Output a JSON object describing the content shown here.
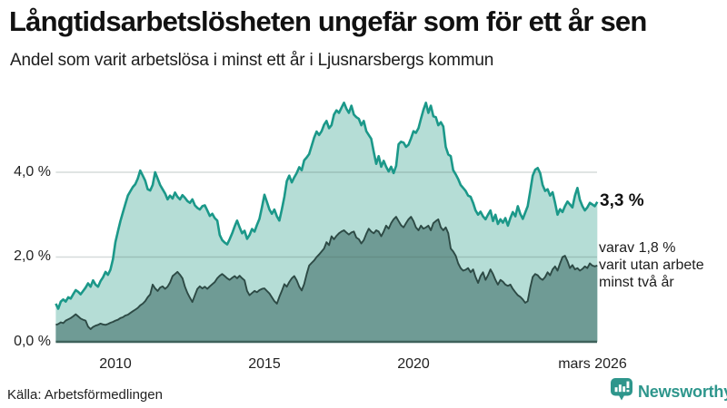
{
  "header": {
    "title": "Långtidsarbetslösheten ungefär som för ett år sen",
    "subtitle": "Andel som varit arbetslösa i minst ett år i Ljusnarsbergs kommun"
  },
  "footer": {
    "source": "Källa: Arbetsförmedlingen",
    "brand": "Newsworthy"
  },
  "colors": {
    "series1_line": "#1b9889",
    "series1_fill": "#b5ddd6",
    "series2_line": "#2d4a45",
    "series2_fill": "#6f9b95",
    "gridline": "rgba(70,90,88,0.22)",
    "baseline": "#3e625b",
    "brand_teal": "#2e968c",
    "text": "#1a1a1a"
  },
  "chart_data": {
    "type": "area",
    "title": "Långtidsarbetslösheten ungefär som för ett år sen",
    "subtitle": "Andel som varit arbetslösa i minst ett år i Ljusnarsbergs kommun",
    "unit": "%",
    "x_start_year": 2008.0,
    "x_step_months": 1,
    "x_end_label_value": 2026.17,
    "ylim": [
      0,
      5.8
    ],
    "grid": "horizontal",
    "y_ticks": [
      {
        "value": 0,
        "label": "0,0 %"
      },
      {
        "value": 2,
        "label": "2,0 %"
      },
      {
        "value": 4,
        "label": "4,0 %"
      }
    ],
    "x_ticks": [
      {
        "value": 2010,
        "label": "2010"
      },
      {
        "value": 2015,
        "label": "2015"
      },
      {
        "value": 2020,
        "label": "2020"
      },
      {
        "value": 2026.17,
        "label": "mars 2026"
      }
    ],
    "end_label": "3,3 %",
    "annotation": {
      "lines": [
        "varav 1,8 %",
        "varit utan arbete",
        "minst två år"
      ]
    },
    "series": [
      {
        "name": "Arbetslösa minst ett år",
        "end_value": 3.3,
        "values": [
          0.9,
          0.78,
          0.95,
          1.0,
          0.95,
          1.05,
          1.02,
          1.12,
          1.22,
          1.18,
          1.12,
          1.2,
          1.28,
          1.38,
          1.3,
          1.45,
          1.35,
          1.3,
          1.43,
          1.52,
          1.65,
          1.58,
          1.7,
          1.95,
          2.35,
          2.6,
          2.85,
          3.05,
          3.25,
          3.45,
          3.55,
          3.65,
          3.72,
          3.85,
          4.04,
          3.92,
          3.8,
          3.6,
          3.57,
          3.7,
          4.0,
          3.85,
          3.7,
          3.6,
          3.5,
          3.36,
          3.45,
          3.38,
          3.52,
          3.42,
          3.36,
          3.46,
          3.4,
          3.32,
          3.28,
          3.36,
          3.22,
          3.16,
          3.12,
          3.2,
          3.22,
          3.1,
          2.97,
          3.02,
          2.92,
          2.86,
          2.52,
          2.4,
          2.34,
          2.3,
          2.42,
          2.56,
          2.72,
          2.86,
          2.7,
          2.56,
          2.62,
          2.43,
          2.52,
          2.66,
          2.6,
          2.76,
          2.9,
          3.18,
          3.47,
          3.3,
          3.12,
          3.02,
          3.12,
          2.96,
          2.86,
          3.12,
          3.42,
          3.79,
          3.92,
          3.76,
          3.88,
          3.98,
          4.12,
          4.05,
          4.28,
          4.35,
          4.43,
          4.62,
          4.82,
          4.96,
          4.88,
          4.97,
          5.12,
          5.21,
          5.04,
          5.11,
          5.36,
          5.46,
          5.4,
          5.52,
          5.64,
          5.5,
          5.4,
          5.57,
          5.36,
          5.3,
          5.26,
          5.11,
          5.21,
          4.97,
          4.88,
          4.79,
          4.48,
          4.2,
          4.38,
          4.13,
          4.27,
          4.13,
          4.02,
          4.13,
          3.98,
          4.15,
          4.66,
          4.72,
          4.7,
          4.6,
          4.65,
          4.8,
          4.97,
          4.93,
          5.04,
          5.26,
          5.47,
          5.64,
          5.4,
          5.57,
          5.32,
          5.3,
          5.11,
          5.18,
          5.08,
          4.6,
          4.42,
          4.38,
          4.05,
          3.95,
          3.84,
          3.7,
          3.63,
          3.56,
          3.45,
          3.42,
          3.28,
          3.1,
          3.0,
          3.07,
          2.96,
          2.89,
          3.0,
          3.1,
          2.85,
          3.0,
          2.78,
          2.89,
          2.81,
          2.92,
          2.74,
          2.92,
          3.06,
          2.96,
          3.2,
          3.02,
          2.9,
          3.05,
          3.2,
          3.56,
          3.92,
          4.06,
          4.1,
          3.98,
          3.7,
          3.56,
          3.6,
          3.45,
          3.53,
          3.28,
          3.0,
          3.13,
          3.06,
          3.2,
          3.31,
          3.24,
          3.17,
          3.45,
          3.63,
          3.35,
          3.2,
          3.1,
          3.17,
          3.28,
          3.24,
          3.2,
          3.3
        ]
      },
      {
        "name": "Varav utan arbete minst två år",
        "end_value": 1.8,
        "values": [
          0.4,
          0.42,
          0.46,
          0.44,
          0.5,
          0.53,
          0.56,
          0.6,
          0.65,
          0.6,
          0.55,
          0.52,
          0.5,
          0.36,
          0.3,
          0.35,
          0.38,
          0.4,
          0.43,
          0.41,
          0.4,
          0.42,
          0.45,
          0.47,
          0.5,
          0.52,
          0.56,
          0.58,
          0.62,
          0.64,
          0.68,
          0.72,
          0.76,
          0.8,
          0.86,
          0.9,
          0.96,
          1.05,
          1.12,
          1.35,
          1.26,
          1.2,
          1.28,
          1.31,
          1.25,
          1.3,
          1.4,
          1.55,
          1.6,
          1.65,
          1.58,
          1.5,
          1.3,
          1.15,
          1.04,
          0.94,
          1.1,
          1.25,
          1.31,
          1.26,
          1.3,
          1.25,
          1.31,
          1.36,
          1.41,
          1.5,
          1.56,
          1.6,
          1.55,
          1.5,
          1.46,
          1.51,
          1.55,
          1.5,
          1.56,
          1.5,
          1.45,
          1.2,
          1.1,
          1.15,
          1.2,
          1.17,
          1.22,
          1.25,
          1.26,
          1.2,
          1.14,
          1.05,
          0.96,
          0.9,
          1.06,
          1.2,
          1.36,
          1.3,
          1.41,
          1.5,
          1.55,
          1.45,
          1.3,
          1.21,
          1.36,
          1.6,
          1.8,
          1.86,
          1.92,
          2.0,
          2.06,
          2.13,
          2.2,
          2.35,
          2.28,
          2.49,
          2.42,
          2.5,
          2.56,
          2.6,
          2.63,
          2.58,
          2.53,
          2.58,
          2.6,
          2.46,
          2.42,
          2.32,
          2.4,
          2.55,
          2.67,
          2.6,
          2.56,
          2.63,
          2.6,
          2.49,
          2.6,
          2.74,
          2.67,
          2.8,
          2.89,
          2.95,
          2.85,
          2.75,
          2.7,
          2.8,
          2.89,
          2.95,
          2.85,
          2.7,
          2.63,
          2.74,
          2.67,
          2.7,
          2.74,
          2.63,
          2.8,
          2.85,
          2.89,
          2.7,
          2.63,
          2.7,
          2.56,
          2.2,
          2.13,
          2.03,
          1.85,
          1.74,
          1.68,
          1.7,
          1.74,
          1.64,
          1.71,
          1.53,
          1.39,
          1.55,
          1.64,
          1.46,
          1.57,
          1.71,
          1.6,
          1.46,
          1.35,
          1.46,
          1.42,
          1.35,
          1.32,
          1.35,
          1.25,
          1.17,
          1.1,
          1.06,
          1.0,
          0.92,
          0.96,
          1.28,
          1.53,
          1.6,
          1.57,
          1.5,
          1.46,
          1.53,
          1.64,
          1.57,
          1.71,
          1.78,
          1.68,
          1.85,
          2.0,
          2.03,
          1.9,
          1.74,
          1.81,
          1.71,
          1.74,
          1.68,
          1.72,
          1.78,
          1.74,
          1.85,
          1.8,
          1.78,
          1.8
        ]
      }
    ]
  }
}
